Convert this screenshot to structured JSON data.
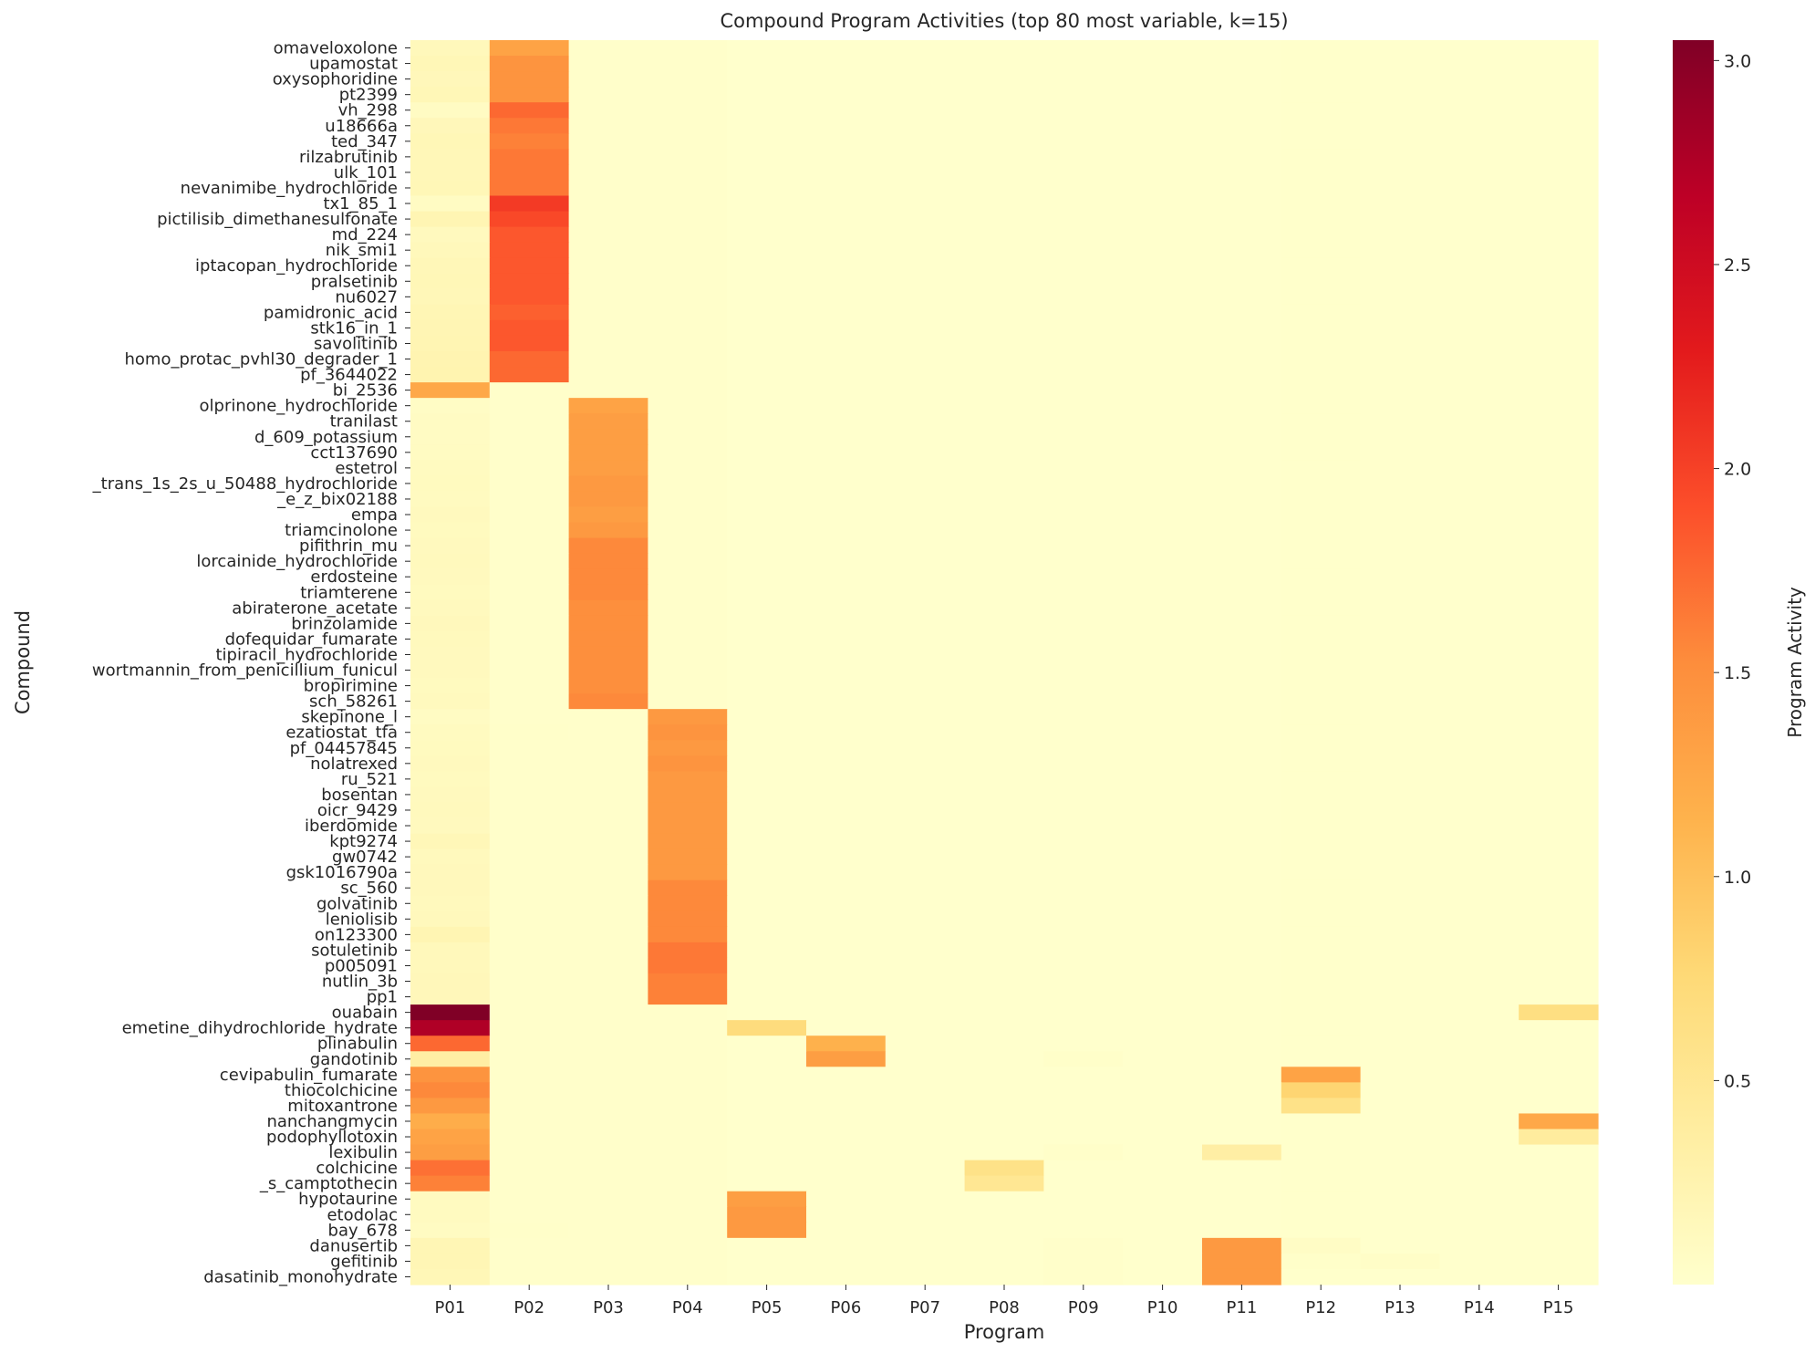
{
  "chart_data": {
    "type": "heatmap",
    "title": "Compound Program Activities (top 80 most variable, k=15)",
    "xlabel": "Program",
    "ylabel": "Compound",
    "colorbar_label": "Program Activity",
    "colormap": "YlOrRd",
    "vmin": 0.0,
    "vmax": 3.05,
    "colorbar_ticks": [
      0.5,
      1.0,
      1.5,
      2.0,
      2.5,
      3.0
    ],
    "colorbar_tick_labels": [
      "0.5",
      "1.0",
      "1.5",
      "2.0",
      "2.5",
      "3.0"
    ],
    "programs": [
      "P01",
      "P02",
      "P03",
      "P04",
      "P05",
      "P06",
      "P07",
      "P08",
      "P09",
      "P10",
      "P11",
      "P12",
      "P13",
      "P14",
      "P15"
    ],
    "compounds": [
      "omaveloxolone",
      "upamostat",
      "oxysophoridine",
      "pt2399",
      "vh_298",
      "u18666a",
      "ted_347",
      "rilzabrutinib",
      "ulk_101",
      "nevanimibe_hydrochloride",
      "tx1_85_1",
      "pictilisib_dimethanesulfonate",
      "md_224",
      "nik_smi1",
      "iptacopan_hydrochloride",
      "pralsetinib",
      "nu6027",
      "pamidronic_acid",
      "stk16_in_1",
      "savolitinib",
      "homo_protac_pvhl30_degrader_1",
      "pf_3644022",
      "bi_2536",
      "olprinone_hydrochloride",
      "tranilast",
      "d_609_potassium",
      "cct137690",
      "estetrol",
      "_trans_1s_2s_u_50488_hydrochloride",
      "_e_z_bix02188",
      "empa",
      "triamcinolone",
      "pifithrin_mu",
      "lorcainide_hydrochloride",
      "erdosteine",
      "triamterene",
      "abiraterone_acetate",
      "brinzolamide",
      "dofequidar_fumarate",
      "tipiracil_hydrochloride",
      "wortmannin_from_penicillium_funicul",
      "bropirimine",
      "sch_58261",
      "skepinone_l",
      "ezatiostat_tfa",
      "pf_04457845",
      "nolatrexed",
      "ru_521",
      "bosentan",
      "oicr_9429",
      "iberdomide",
      "kpt9274",
      "gw0742",
      "gsk1016790a",
      "sc_560",
      "golvatinib",
      "leniolisib",
      "on123300",
      "sotuletinib",
      "p005091",
      "nutlin_3b",
      "pp1",
      "ouabain",
      "emetine_dihydrochloride_hydrate",
      "plinabulin",
      "gandotinib",
      "cevipabulin_fumarate",
      "thiocolchicine",
      "mitoxantrone",
      "nanchangmycin",
      "podophyllotoxin",
      "lexibulin",
      "colchicine",
      "_s_camptothecin",
      "hypotaurine",
      "etodolac",
      "bay_678",
      "danusertib",
      "gefitinib",
      "dasatinib_monohydrate"
    ],
    "values": [
      [
        0.15,
        1.3,
        0.02,
        0.02,
        0.0,
        0.0,
        0.0,
        0.0,
        0.0,
        0.0,
        0.0,
        0.01,
        0.0,
        0.0,
        0.0
      ],
      [
        0.18,
        1.45,
        0.02,
        0.02,
        0.0,
        0.0,
        0.0,
        0.0,
        0.0,
        0.0,
        0.0,
        0.01,
        0.0,
        0.0,
        0.0
      ],
      [
        0.16,
        1.45,
        0.02,
        0.02,
        0.0,
        0.0,
        0.0,
        0.0,
        0.0,
        0.0,
        0.0,
        0.01,
        0.0,
        0.0,
        0.0
      ],
      [
        0.18,
        1.45,
        0.02,
        0.02,
        0.0,
        0.0,
        0.0,
        0.0,
        0.0,
        0.0,
        0.0,
        0.01,
        0.0,
        0.0,
        0.0
      ],
      [
        0.08,
        1.75,
        0.02,
        0.02,
        0.0,
        0.0,
        0.0,
        0.0,
        0.0,
        0.0,
        0.0,
        0.01,
        0.0,
        0.0,
        0.0
      ],
      [
        0.16,
        1.65,
        0.02,
        0.02,
        0.0,
        0.0,
        0.0,
        0.0,
        0.0,
        0.0,
        0.0,
        0.01,
        0.0,
        0.0,
        0.0
      ],
      [
        0.18,
        1.6,
        0.02,
        0.02,
        0.0,
        0.0,
        0.0,
        0.0,
        0.0,
        0.0,
        0.0,
        0.01,
        0.0,
        0.0,
        0.0
      ],
      [
        0.17,
        1.65,
        0.02,
        0.02,
        0.0,
        0.0,
        0.0,
        0.0,
        0.0,
        0.0,
        0.0,
        0.01,
        0.0,
        0.0,
        0.0
      ],
      [
        0.17,
        1.65,
        0.02,
        0.02,
        0.0,
        0.0,
        0.0,
        0.0,
        0.0,
        0.0,
        0.0,
        0.01,
        0.0,
        0.0,
        0.0
      ],
      [
        0.18,
        1.65,
        0.02,
        0.02,
        0.0,
        0.0,
        0.0,
        0.0,
        0.0,
        0.0,
        0.0,
        0.01,
        0.0,
        0.0,
        0.0
      ],
      [
        0.08,
        2.05,
        0.02,
        0.02,
        0.0,
        0.0,
        0.0,
        0.0,
        0.0,
        0.0,
        0.0,
        0.01,
        0.0,
        0.0,
        0.0
      ],
      [
        0.22,
        1.95,
        0.02,
        0.02,
        0.0,
        0.0,
        0.0,
        0.0,
        0.0,
        0.0,
        0.0,
        0.01,
        0.0,
        0.0,
        0.0
      ],
      [
        0.12,
        1.85,
        0.02,
        0.02,
        0.0,
        0.0,
        0.0,
        0.0,
        0.0,
        0.0,
        0.0,
        0.01,
        0.0,
        0.0,
        0.0
      ],
      [
        0.15,
        1.85,
        0.02,
        0.02,
        0.0,
        0.0,
        0.0,
        0.0,
        0.0,
        0.0,
        0.0,
        0.01,
        0.0,
        0.0,
        0.0
      ],
      [
        0.17,
        1.85,
        0.02,
        0.02,
        0.0,
        0.0,
        0.0,
        0.0,
        0.0,
        0.0,
        0.0,
        0.01,
        0.0,
        0.0,
        0.0
      ],
      [
        0.18,
        1.85,
        0.02,
        0.02,
        0.0,
        0.0,
        0.0,
        0.0,
        0.0,
        0.0,
        0.0,
        0.01,
        0.0,
        0.0,
        0.0
      ],
      [
        0.17,
        1.85,
        0.02,
        0.02,
        0.0,
        0.0,
        0.0,
        0.0,
        0.0,
        0.0,
        0.0,
        0.01,
        0.0,
        0.0,
        0.0
      ],
      [
        0.2,
        1.8,
        0.02,
        0.02,
        0.0,
        0.0,
        0.0,
        0.0,
        0.0,
        0.0,
        0.0,
        0.01,
        0.0,
        0.0,
        0.0
      ],
      [
        0.21,
        1.85,
        0.02,
        0.02,
        0.0,
        0.0,
        0.0,
        0.0,
        0.0,
        0.0,
        0.0,
        0.01,
        0.0,
        0.0,
        0.0
      ],
      [
        0.22,
        1.85,
        0.02,
        0.02,
        0.0,
        0.0,
        0.0,
        0.0,
        0.0,
        0.0,
        0.0,
        0.01,
        0.0,
        0.0,
        0.0
      ],
      [
        0.23,
        1.75,
        0.02,
        0.02,
        0.0,
        0.0,
        0.0,
        0.0,
        0.0,
        0.0,
        0.0,
        0.01,
        0.0,
        0.0,
        0.0
      ],
      [
        0.24,
        1.75,
        0.02,
        0.02,
        0.0,
        0.0,
        0.0,
        0.0,
        0.0,
        0.0,
        0.0,
        0.01,
        0.0,
        0.0,
        0.0
      ],
      [
        1.25,
        0.02,
        0.02,
        0.02,
        0.0,
        0.0,
        0.0,
        0.0,
        0.0,
        0.0,
        0.0,
        0.01,
        0.0,
        0.0,
        0.0
      ],
      [
        0.06,
        0.02,
        1.3,
        0.02,
        0.0,
        0.0,
        0.0,
        0.0,
        0.0,
        0.0,
        0.0,
        0.01,
        0.0,
        0.0,
        0.0
      ],
      [
        0.08,
        0.02,
        1.35,
        0.02,
        0.0,
        0.0,
        0.0,
        0.0,
        0.0,
        0.0,
        0.0,
        0.01,
        0.0,
        0.0,
        0.0
      ],
      [
        0.08,
        0.02,
        1.35,
        0.02,
        0.0,
        0.0,
        0.0,
        0.0,
        0.0,
        0.0,
        0.0,
        0.01,
        0.0,
        0.0,
        0.0
      ],
      [
        0.09,
        0.02,
        1.35,
        0.02,
        0.0,
        0.0,
        0.0,
        0.0,
        0.0,
        0.0,
        0.0,
        0.01,
        0.0,
        0.0,
        0.0
      ],
      [
        0.1,
        0.02,
        1.35,
        0.02,
        0.0,
        0.0,
        0.0,
        0.0,
        0.0,
        0.0,
        0.0,
        0.01,
        0.0,
        0.0,
        0.0
      ],
      [
        0.11,
        0.02,
        1.4,
        0.02,
        0.0,
        0.0,
        0.0,
        0.0,
        0.0,
        0.0,
        0.0,
        0.01,
        0.0,
        0.0,
        0.0
      ],
      [
        0.1,
        0.02,
        1.4,
        0.02,
        0.0,
        0.0,
        0.0,
        0.0,
        0.0,
        0.0,
        0.0,
        0.01,
        0.0,
        0.0,
        0.0
      ],
      [
        0.12,
        0.02,
        1.35,
        0.02,
        0.0,
        0.0,
        0.0,
        0.0,
        0.0,
        0.0,
        0.0,
        0.01,
        0.0,
        0.0,
        0.0
      ],
      [
        0.11,
        0.02,
        1.4,
        0.02,
        0.0,
        0.0,
        0.0,
        0.0,
        0.0,
        0.0,
        0.0,
        0.01,
        0.0,
        0.0,
        0.0
      ],
      [
        0.12,
        0.02,
        1.55,
        0.02,
        0.0,
        0.0,
        0.0,
        0.0,
        0.0,
        0.0,
        0.0,
        0.01,
        0.0,
        0.0,
        0.0
      ],
      [
        0.13,
        0.02,
        1.55,
        0.02,
        0.0,
        0.0,
        0.0,
        0.0,
        0.0,
        0.0,
        0.0,
        0.01,
        0.0,
        0.0,
        0.0
      ],
      [
        0.12,
        0.02,
        1.55,
        0.02,
        0.0,
        0.0,
        0.0,
        0.0,
        0.0,
        0.0,
        0.0,
        0.01,
        0.0,
        0.0,
        0.0
      ],
      [
        0.11,
        0.02,
        1.55,
        0.02,
        0.0,
        0.0,
        0.0,
        0.0,
        0.0,
        0.0,
        0.0,
        0.01,
        0.0,
        0.0,
        0.0
      ],
      [
        0.12,
        0.02,
        1.5,
        0.02,
        0.0,
        0.0,
        0.0,
        0.0,
        0.0,
        0.0,
        0.0,
        0.01,
        0.0,
        0.0,
        0.0
      ],
      [
        0.14,
        0.02,
        1.5,
        0.02,
        0.0,
        0.0,
        0.0,
        0.0,
        0.0,
        0.0,
        0.0,
        0.01,
        0.0,
        0.0,
        0.0
      ],
      [
        0.13,
        0.02,
        1.5,
        0.02,
        0.0,
        0.0,
        0.0,
        0.0,
        0.0,
        0.0,
        0.0,
        0.01,
        0.0,
        0.0,
        0.0
      ],
      [
        0.12,
        0.02,
        1.5,
        0.02,
        0.0,
        0.0,
        0.0,
        0.0,
        0.0,
        0.0,
        0.0,
        0.01,
        0.0,
        0.0,
        0.0
      ],
      [
        0.12,
        0.02,
        1.5,
        0.02,
        0.0,
        0.0,
        0.0,
        0.0,
        0.0,
        0.0,
        0.0,
        0.01,
        0.0,
        0.0,
        0.0
      ],
      [
        0.11,
        0.02,
        1.5,
        0.02,
        0.0,
        0.0,
        0.0,
        0.0,
        0.0,
        0.0,
        0.0,
        0.01,
        0.0,
        0.0,
        0.0
      ],
      [
        0.12,
        0.02,
        1.55,
        0.02,
        0.0,
        0.0,
        0.0,
        0.0,
        0.0,
        0.0,
        0.0,
        0.01,
        0.0,
        0.0,
        0.0
      ],
      [
        0.08,
        0.02,
        0.02,
        1.4,
        0.0,
        0.0,
        0.0,
        0.0,
        0.0,
        0.0,
        0.0,
        0.01,
        0.0,
        0.0,
        0.0
      ],
      [
        0.1,
        0.03,
        0.02,
        1.45,
        0.0,
        0.0,
        0.0,
        0.0,
        0.0,
        0.0,
        0.0,
        0.01,
        0.0,
        0.0,
        0.0
      ],
      [
        0.11,
        0.02,
        0.02,
        1.4,
        0.0,
        0.0,
        0.0,
        0.0,
        0.0,
        0.0,
        0.0,
        0.01,
        0.0,
        0.0,
        0.0
      ],
      [
        0.12,
        0.02,
        0.02,
        1.45,
        0.0,
        0.0,
        0.0,
        0.0,
        0.0,
        0.0,
        0.0,
        0.01,
        0.0,
        0.0,
        0.0
      ],
      [
        0.11,
        0.02,
        0.02,
        1.4,
        0.0,
        0.0,
        0.0,
        0.0,
        0.0,
        0.0,
        0.0,
        0.01,
        0.0,
        0.0,
        0.0
      ],
      [
        0.12,
        0.02,
        0.02,
        1.4,
        0.0,
        0.0,
        0.0,
        0.0,
        0.0,
        0.0,
        0.0,
        0.01,
        0.0,
        0.0,
        0.0
      ],
      [
        0.13,
        0.02,
        0.02,
        1.4,
        0.0,
        0.0,
        0.0,
        0.0,
        0.0,
        0.0,
        0.0,
        0.01,
        0.0,
        0.0,
        0.0
      ],
      [
        0.12,
        0.02,
        0.02,
        1.4,
        0.0,
        0.0,
        0.0,
        0.0,
        0.0,
        0.0,
        0.0,
        0.01,
        0.0,
        0.0,
        0.0
      ],
      [
        0.17,
        0.02,
        0.02,
        1.4,
        0.0,
        0.0,
        0.0,
        0.0,
        0.0,
        0.0,
        0.0,
        0.01,
        0.0,
        0.0,
        0.0
      ],
      [
        0.13,
        0.02,
        0.02,
        1.4,
        0.0,
        0.0,
        0.0,
        0.0,
        0.0,
        0.0,
        0.0,
        0.01,
        0.0,
        0.0,
        0.0
      ],
      [
        0.14,
        0.02,
        0.02,
        1.4,
        0.0,
        0.0,
        0.0,
        0.0,
        0.0,
        0.0,
        0.0,
        0.01,
        0.0,
        0.0,
        0.0
      ],
      [
        0.14,
        0.02,
        0.02,
        1.55,
        0.0,
        0.0,
        0.0,
        0.0,
        0.0,
        0.0,
        0.0,
        0.01,
        0.0,
        0.0,
        0.0
      ],
      [
        0.13,
        0.02,
        0.02,
        1.55,
        0.0,
        0.0,
        0.0,
        0.0,
        0.0,
        0.0,
        0.0,
        0.01,
        0.0,
        0.0,
        0.0
      ],
      [
        0.14,
        0.02,
        0.02,
        1.55,
        0.0,
        0.0,
        0.0,
        0.0,
        0.0,
        0.0,
        0.0,
        0.01,
        0.0,
        0.0,
        0.0
      ],
      [
        0.22,
        0.02,
        0.02,
        1.55,
        0.0,
        0.0,
        0.0,
        0.0,
        0.0,
        0.0,
        0.0,
        0.01,
        0.0,
        0.0,
        0.0
      ],
      [
        0.15,
        0.02,
        0.02,
        1.65,
        0.0,
        0.0,
        0.0,
        0.0,
        0.0,
        0.0,
        0.0,
        0.01,
        0.0,
        0.0,
        0.0
      ],
      [
        0.15,
        0.02,
        0.02,
        1.65,
        0.0,
        0.0,
        0.0,
        0.0,
        0.0,
        0.0,
        0.0,
        0.01,
        0.0,
        0.0,
        0.0
      ],
      [
        0.16,
        0.02,
        0.02,
        1.6,
        0.0,
        0.0,
        0.0,
        0.0,
        0.0,
        0.0,
        0.0,
        0.01,
        0.0,
        0.0,
        0.0
      ],
      [
        0.16,
        0.02,
        0.02,
        1.6,
        0.0,
        0.0,
        0.0,
        0.0,
        0.0,
        0.0,
        0.0,
        0.01,
        0.0,
        0.0,
        0.0
      ],
      [
        3.05,
        0.02,
        0.02,
        0.02,
        0.0,
        0.0,
        0.0,
        0.0,
        0.0,
        0.0,
        0.0,
        0.01,
        0.0,
        0.0,
        0.65
      ],
      [
        2.75,
        0.02,
        0.02,
        0.02,
        0.7,
        0.0,
        0.0,
        0.0,
        0.0,
        0.0,
        0.0,
        0.01,
        0.0,
        0.0,
        0.0
      ],
      [
        1.75,
        0.02,
        0.02,
        0.02,
        0.0,
        1.15,
        0.0,
        0.0,
        0.0,
        0.0,
        0.0,
        0.01,
        0.0,
        0.0,
        0.0
      ],
      [
        0.35,
        0.02,
        0.02,
        0.02,
        0.0,
        1.35,
        0.0,
        0.0,
        0.03,
        0.0,
        0.0,
        0.01,
        0.0,
        0.0,
        0.0
      ],
      [
        1.45,
        0.02,
        0.02,
        0.02,
        0.0,
        0.0,
        0.0,
        0.0,
        0.0,
        0.0,
        0.0,
        1.3,
        0.0,
        0.0,
        0.0
      ],
      [
        1.55,
        0.02,
        0.02,
        0.02,
        0.0,
        0.0,
        0.0,
        0.0,
        0.0,
        0.0,
        0.0,
        0.8,
        0.0,
        0.0,
        0.0
      ],
      [
        1.4,
        0.02,
        0.02,
        0.02,
        0.0,
        0.0,
        0.0,
        0.0,
        0.0,
        0.0,
        0.0,
        0.6,
        0.0,
        0.0,
        0.0
      ],
      [
        1.2,
        0.02,
        0.02,
        0.02,
        0.0,
        0.0,
        0.0,
        0.0,
        0.0,
        0.0,
        0.0,
        0.01,
        0.0,
        0.0,
        1.25
      ],
      [
        1.3,
        0.02,
        0.02,
        0.02,
        0.0,
        0.0,
        0.0,
        0.0,
        0.0,
        0.0,
        0.0,
        0.01,
        0.0,
        0.0,
        0.4
      ],
      [
        1.35,
        0.02,
        0.02,
        0.02,
        0.0,
        0.0,
        0.0,
        0.0,
        0.03,
        0.0,
        0.35,
        0.01,
        0.0,
        0.0,
        0.0
      ],
      [
        1.7,
        0.02,
        0.02,
        0.02,
        0.0,
        0.0,
        0.0,
        0.6,
        0.0,
        0.0,
        0.0,
        0.01,
        0.0,
        0.0,
        0.0
      ],
      [
        1.6,
        0.02,
        0.02,
        0.02,
        0.0,
        0.0,
        0.0,
        0.5,
        0.0,
        0.0,
        0.0,
        0.01,
        0.0,
        0.0,
        0.0
      ],
      [
        0.1,
        0.02,
        0.02,
        0.02,
        1.35,
        0.0,
        0.0,
        0.0,
        0.0,
        0.0,
        0.0,
        0.01,
        0.0,
        0.0,
        0.0
      ],
      [
        0.1,
        0.02,
        0.02,
        0.02,
        1.4,
        0.0,
        0.0,
        0.0,
        0.0,
        0.0,
        0.0,
        0.01,
        0.0,
        0.0,
        0.0
      ],
      [
        0.09,
        0.03,
        0.02,
        0.02,
        1.4,
        0.0,
        0.0,
        0.0,
        0.0,
        0.0,
        0.0,
        0.01,
        0.0,
        0.0,
        0.0
      ],
      [
        0.2,
        0.02,
        0.02,
        0.02,
        0.0,
        0.0,
        0.0,
        0.0,
        0.02,
        0.0,
        1.4,
        0.06,
        0.0,
        0.0,
        0.0
      ],
      [
        0.2,
        0.02,
        0.02,
        0.02,
        0.0,
        0.0,
        0.0,
        0.0,
        0.02,
        0.0,
        1.4,
        0.03,
        0.04,
        0.0,
        0.0
      ],
      [
        0.18,
        0.02,
        0.02,
        0.02,
        0.0,
        0.0,
        0.0,
        0.0,
        0.02,
        0.0,
        1.4,
        0.01,
        0.0,
        0.0,
        0.0
      ]
    ]
  }
}
